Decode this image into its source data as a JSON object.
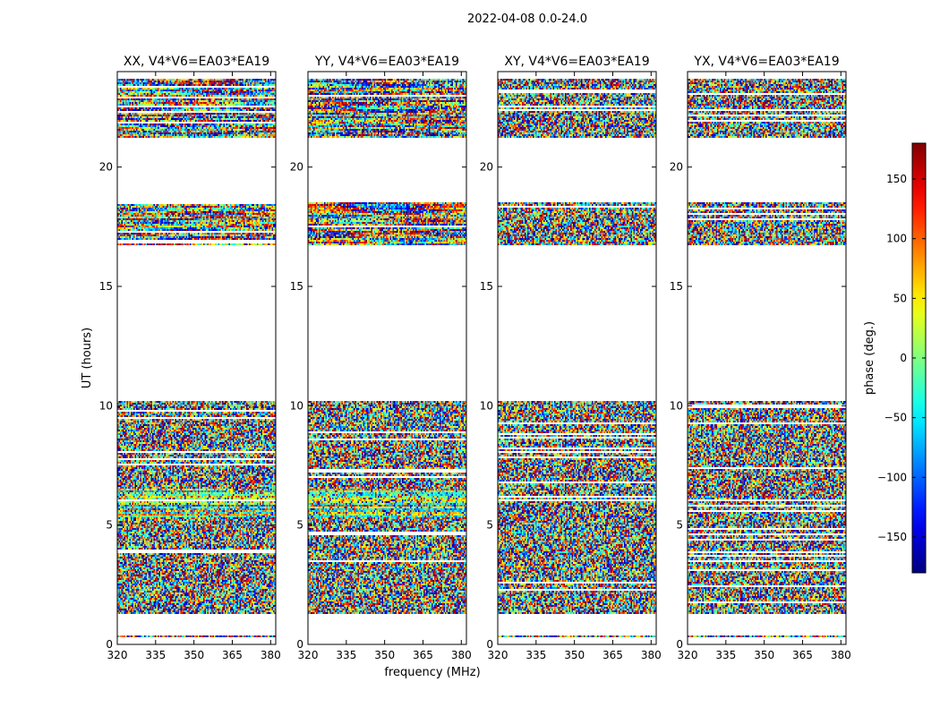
{
  "figure": {
    "suptitle": "2022-04-08 0.0-24.0"
  },
  "chart_data": {
    "type": "heatmap",
    "xlabel": "frequency (MHz)",
    "ylabel": "UT (hours)",
    "xlim": [
      320,
      382
    ],
    "ylim": [
      0,
      24
    ],
    "xticks": [
      320,
      335,
      350,
      365,
      380
    ],
    "yticks": [
      0,
      5,
      10,
      15,
      20
    ],
    "colorbar": {
      "label": "phase (deg.)",
      "range": [
        -180,
        180
      ],
      "ticks": [
        150,
        100,
        50,
        0,
        -50,
        -100,
        -150
      ],
      "tick_labels": [
        "150",
        "100",
        "50",
        "0",
        "−50",
        "−100",
        "−150"
      ],
      "colormap": "jet"
    },
    "data_bands_ut": [
      [
        0.3,
        0.4
      ],
      [
        1.25,
        10.2
      ],
      [
        16.7,
        18.5
      ],
      [
        21.2,
        23.7
      ]
    ],
    "panels": [
      {
        "title": "XX, V4*V6=EA03*EA19",
        "pol": "XX"
      },
      {
        "title": "YY, V4*V6=EA03*EA19",
        "pol": "YY"
      },
      {
        "title": "XY, V4*V6=EA03*EA19",
        "pol": "XY"
      },
      {
        "title": "YX, V4*V6=EA03*EA19",
        "pol": "YX"
      }
    ]
  }
}
